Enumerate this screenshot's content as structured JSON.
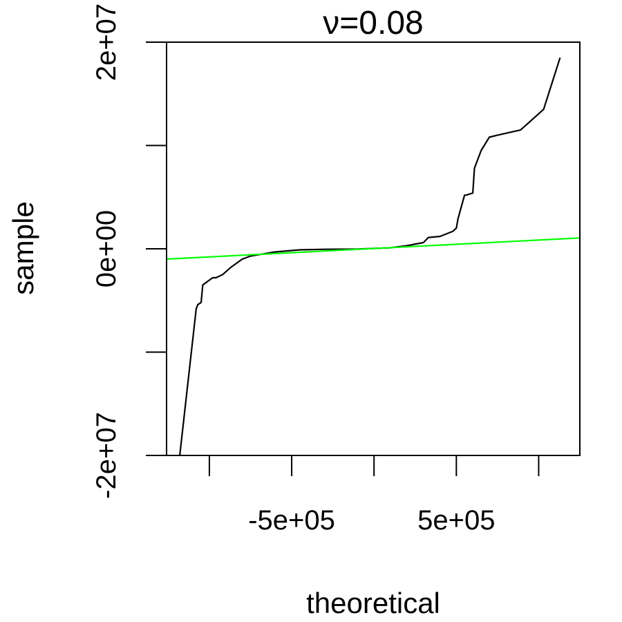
{
  "chart_data": {
    "type": "line",
    "title": "ν=0.08",
    "xlabel": "theoretical",
    "ylabel": "sample",
    "xlim": [
      -1260000,
      1250000
    ],
    "ylim": [
      -20000000,
      20000000
    ],
    "x_ticks": [
      -1000000,
      -500000,
      0,
      500000,
      1000000
    ],
    "x_tick_labels": [
      "",
      "-5e+05",
      "",
      "5e+05",
      ""
    ],
    "y_ticks": [
      -20000000,
      -10000000,
      0,
      10000000,
      20000000
    ],
    "y_tick_labels": [
      "-2e+07",
      "",
      "0e+00",
      "",
      "2e+07"
    ],
    "grid": false,
    "series": [
      {
        "role": "sample-quantiles",
        "color": "#000000",
        "x": [
          -1180000,
          -1080000,
          -1070000,
          -1050000,
          -1040000,
          -980000,
          -960000,
          -920000,
          -870000,
          -800000,
          -750000,
          -600000,
          -450000,
          -300000,
          -100000,
          100000,
          200000,
          300000,
          330000,
          400000,
          480000,
          500000,
          510000,
          550000,
          560000,
          600000,
          610000,
          650000,
          700000,
          750000,
          890000,
          1030000,
          1130000
        ],
        "y": [
          -20000000,
          -5800000,
          -5400000,
          -5200000,
          -3500000,
          -2800000,
          -2800000,
          -2500000,
          -1800000,
          -1000000,
          -700000,
          -300000,
          -100000,
          -50000,
          -30000,
          100000,
          300000,
          600000,
          1100000,
          1200000,
          1700000,
          2000000,
          2900000,
          5200000,
          5200000,
          5400000,
          7800000,
          9500000,
          10800000,
          11000000,
          11500000,
          13500000,
          18500000
        ]
      },
      {
        "role": "reference-line",
        "color": "#00ff00",
        "x": [
          -1260000,
          1250000
        ],
        "y": [
          -1000000,
          1050000
        ]
      }
    ]
  }
}
